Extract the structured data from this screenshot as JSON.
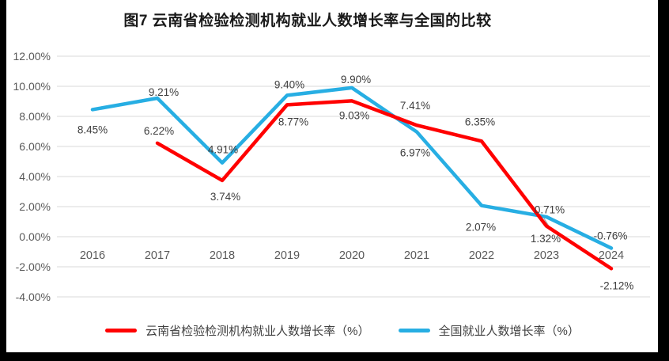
{
  "title": "图7  云南省检验检测机构就业人数增长率与全国的比较",
  "legend": {
    "items": [
      {
        "label": "云南省检验检测机构就业人数增长率（%）",
        "color": "#FF0000"
      },
      {
        "label": "全国就业人数增长率（%）",
        "color": "#27AEE3"
      }
    ]
  },
  "chart_data": {
    "type": "line",
    "title": "图7  云南省检验检测机构就业人数增长率与全国的比较",
    "categories": [
      "2016",
      "2017",
      "2018",
      "2019",
      "2020",
      "2021",
      "2022",
      "2023",
      "2024"
    ],
    "series": [
      {
        "name": "全国就业人数增长率（%）",
        "color": "#27AEE3",
        "values": [
          8.45,
          9.21,
          4.91,
          9.4,
          9.9,
          6.97,
          2.07,
          1.32,
          -0.76
        ],
        "point_labels": [
          "8.45%",
          "9.21%",
          "4.91%",
          "9.40%",
          "9.90%",
          "6.97%",
          "2.07%",
          "1.32%",
          "-0.76%"
        ],
        "label_offsets": [
          [
            0,
            25
          ],
          [
            8,
            -8
          ],
          [
            1,
            -17
          ],
          [
            3,
            -14
          ],
          [
            5,
            -11
          ],
          [
            -2,
            26
          ],
          [
            -1,
            27
          ],
          [
            -1,
            27
          ],
          [
            -1,
            -16
          ]
        ],
        "leader_line_at": 7
      },
      {
        "name": "云南省检验检测机构就业人数增长率（%）",
        "color": "#FF0000",
        "values": [
          null,
          6.22,
          3.74,
          8.77,
          9.03,
          7.41,
          6.35,
          0.71,
          -2.12
        ],
        "point_labels": [
          null,
          "6.22%",
          "3.74%",
          "8.77%",
          "9.03%",
          "7.41%",
          "6.35%",
          "0.71%",
          "-2.12%"
        ],
        "label_offsets": [
          null,
          [
            2,
            -16
          ],
          [
            4,
            20
          ],
          [
            8,
            21
          ],
          [
            3,
            18
          ],
          [
            -2,
            -25
          ],
          [
            -2,
            -25
          ],
          [
            4,
            -21
          ],
          [
            7,
            21
          ]
        ]
      }
    ],
    "y_axis": {
      "tick_labels": [
        "12.00%",
        "10.00%",
        "8.00%",
        "6.00%",
        "4.00%",
        "2.00%",
        "0.00%",
        "-2.00%",
        "-4.00%"
      ],
      "tick_values": [
        12,
        10,
        8,
        6,
        4,
        2,
        0,
        -2,
        -4
      ],
      "ylim": [
        -4,
        12
      ],
      "grid": true
    },
    "legend_position": "bottom"
  },
  "colors": {
    "grid": "#D9D9D9",
    "axis_text": "#595959",
    "data_label_text": "#3D3D3D",
    "leader": "#A6A6A6",
    "paper": "#FFFFFF",
    "frame": "#000000"
  }
}
